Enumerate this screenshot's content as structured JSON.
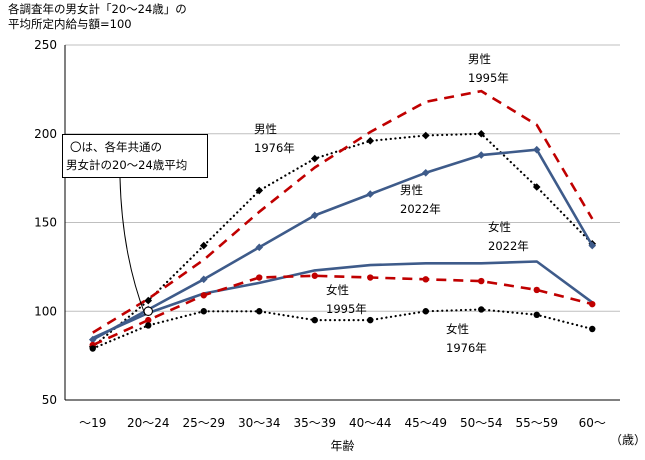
{
  "chart_data": {
    "type": "line",
    "ylabel_lines": [
      "各調査年の男女計「20～24歳」の",
      "平均所定内給与額=100"
    ],
    "xlabel": "年齢",
    "x_unit": "（歳）",
    "categories": [
      "～19",
      "20～24",
      "25～29",
      "30～34",
      "35～39",
      "40～44",
      "45～49",
      "50～54",
      "55～59",
      "60～"
    ],
    "ylim": [
      50,
      250
    ],
    "yticks": [
      50,
      100,
      150,
      200,
      250
    ],
    "grid": "horizontal",
    "series": [
      {
        "id": "m1976",
        "color": "#000000",
        "style": "dotted",
        "marker": "diamond",
        "values": [
          80,
          106,
          137,
          168,
          186,
          196,
          199,
          200,
          170,
          138
        ]
      },
      {
        "id": "m1995",
        "color": "#c00000",
        "style": "dashed",
        "marker": "none",
        "values": [
          88,
          107,
          129,
          156,
          181,
          201,
          218,
          224,
          205,
          152
        ]
      },
      {
        "id": "m2022",
        "color": "#3e5b8a",
        "style": "solid",
        "marker": "diamond",
        "values": [
          84,
          101,
          118,
          136,
          154,
          166,
          178,
          188,
          191,
          137
        ]
      },
      {
        "id": "f2022",
        "color": "#3e5b8a",
        "style": "solid",
        "marker": "none",
        "values": [
          85,
          99,
          110,
          116,
          123,
          126,
          127,
          127,
          128,
          105
        ]
      },
      {
        "id": "f1995",
        "color": "#c00000",
        "style": "dashed",
        "marker": "circle",
        "values": [
          81,
          95,
          109,
          119,
          120,
          119,
          118,
          117,
          112,
          104
        ]
      },
      {
        "id": "f1976",
        "color": "#000000",
        "style": "dotted",
        "marker": "circle",
        "values": [
          79,
          92,
          100,
          100,
          95,
          95,
          100,
          101,
          98,
          90
        ]
      }
    ],
    "annotations": [
      {
        "id": "m1995",
        "lines": [
          "男性",
          "1995年"
        ]
      },
      {
        "id": "m1976",
        "lines": [
          "男性",
          "1976年"
        ]
      },
      {
        "id": "m2022",
        "lines": [
          "男性",
          "2022年"
        ]
      },
      {
        "id": "f2022",
        "lines": [
          "女性",
          "2022年"
        ]
      },
      {
        "id": "f1995",
        "lines": [
          "女性",
          "1995年"
        ]
      },
      {
        "id": "f1976",
        "lines": [
          "女性",
          "1976年"
        ]
      }
    ],
    "callout": [
      "〇は、各年共通の",
      "男女計の20～24歳平均"
    ],
    "reference_point": {
      "category": "20～24",
      "value": 100
    }
  }
}
